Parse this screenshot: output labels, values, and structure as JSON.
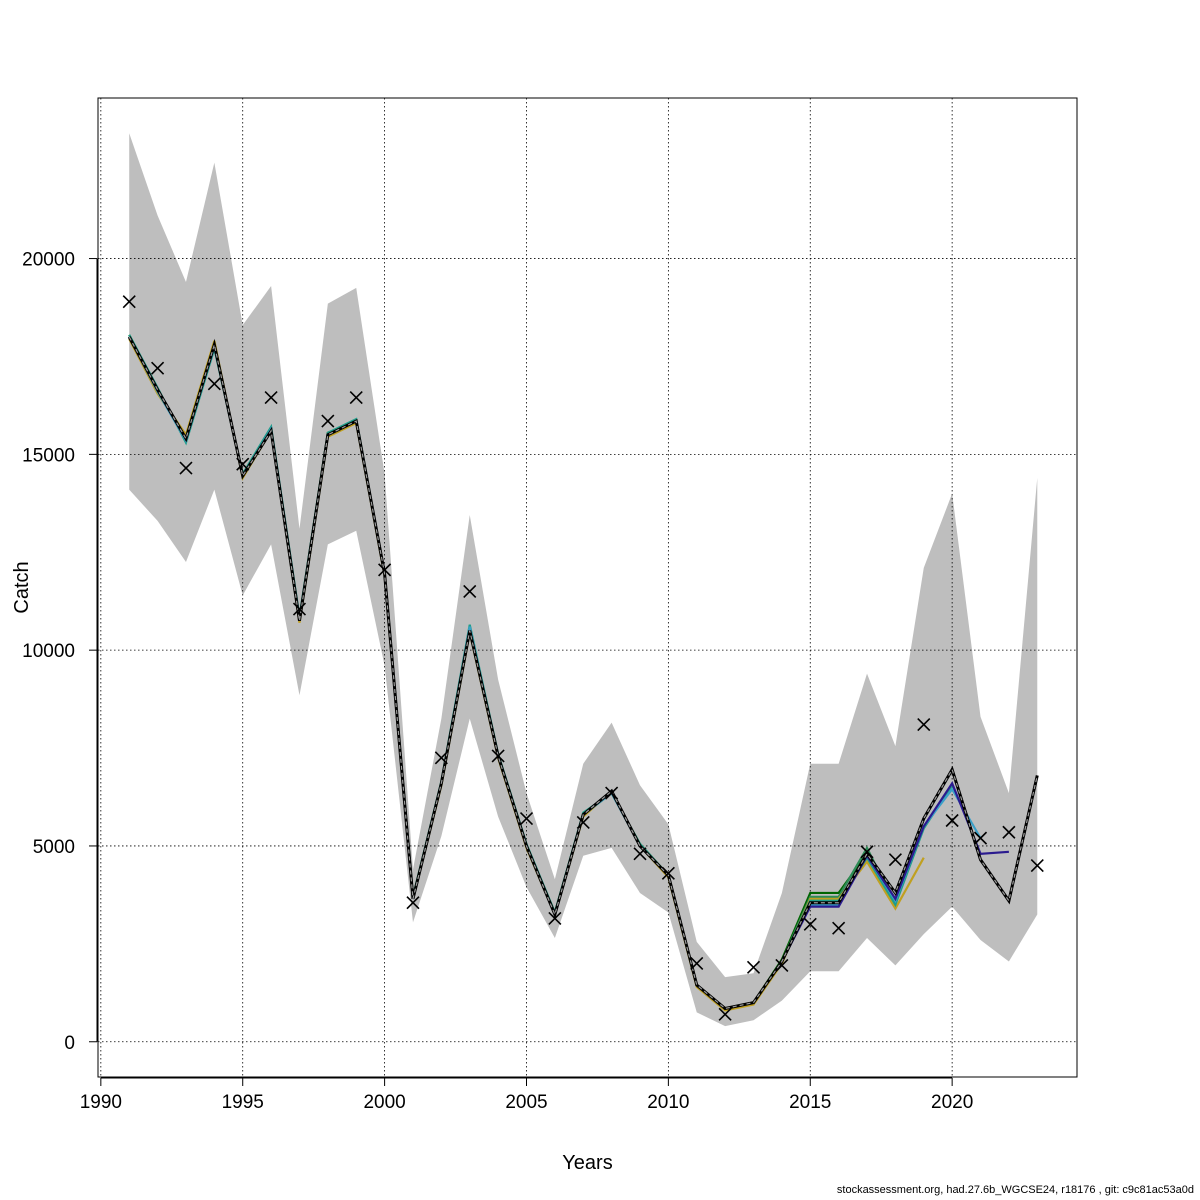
{
  "footer": "stockassessment.org, had.27.6b_WGCSE24, r18176 , git: c9c81ac53a0d",
  "chart_data": {
    "type": "line",
    "xlabel": "Years",
    "ylabel": "Catch",
    "xlim": [
      1989.9,
      2024.4
    ],
    "ylim": [
      -900,
      24100
    ],
    "x_ticks": [
      1990,
      1995,
      2000,
      2005,
      2010,
      2015,
      2020
    ],
    "y_ticks": [
      0,
      5000,
      10000,
      15000,
      20000
    ],
    "x_tick_labels": [
      "1990",
      "1995",
      "2000",
      "2005",
      "2010",
      "2015",
      "2020"
    ],
    "y_tick_labels": [
      "0",
      "5000",
      "10000",
      "15000",
      "20000"
    ],
    "grid": true,
    "colors": {
      "band": "#bebebe",
      "observed": "#000000",
      "fit": "#000000",
      "peel_1": "#2b1b8f",
      "peel_2": "#3aa0c8",
      "peel_3": "#1f9e89",
      "peel_4": "#c0a020",
      "peel_5": "#2e8b57",
      "peel_6": "#006400"
    },
    "confidence_band": {
      "x": [
        1991,
        1992,
        1993,
        1994,
        1995,
        1996,
        1997,
        1998,
        1999,
        2000,
        2001,
        2002,
        2003,
        2004,
        2005,
        2006,
        2007,
        2008,
        2009,
        2010,
        2011,
        2012,
        2013,
        2014,
        2015,
        2016,
        2017,
        2018,
        2019,
        2020,
        2021,
        2022,
        2023
      ],
      "lower": [
        14100,
        13300,
        12250,
        14100,
        11400,
        12700,
        8850,
        12700,
        13050,
        9600,
        3050,
        5250,
        8250,
        5750,
        3950,
        2650,
        4750,
        4950,
        3800,
        3300,
        750,
        400,
        550,
        1050,
        1800,
        1800,
        2650,
        1950,
        2750,
        3450,
        2600,
        2050,
        3250
      ],
      "upper": [
        23200,
        21100,
        19400,
        22450,
        18300,
        19300,
        13100,
        18850,
        19250,
        14500,
        4400,
        8250,
        13450,
        9250,
        6350,
        4150,
        7100,
        8150,
        6550,
        5550,
        2550,
        1650,
        1750,
        3800,
        7100,
        7100,
        9400,
        7550,
        12100,
        14000,
        8300,
        6350,
        14400
      ]
    },
    "observed": {
      "x": [
        1991,
        1992,
        1993,
        1994,
        1995,
        1996,
        1997,
        1998,
        1999,
        2000,
        2001,
        2002,
        2003,
        2004,
        2005,
        2006,
        2007,
        2008,
        2009,
        2010,
        2011,
        2012,
        2013,
        2014,
        2015,
        2016,
        2017,
        2018,
        2019,
        2020,
        2021,
        2022,
        2023
      ],
      "y": [
        18900,
        17200,
        14650,
        16800,
        14750,
        16450,
        11050,
        15850,
        16450,
        12050,
        3550,
        7250,
        11500,
        7300,
        5700,
        3150,
        5600,
        6350,
        4800,
        4300,
        2000,
        700,
        1900,
        1950,
        3000,
        2900,
        4850,
        4650,
        8100,
        5650,
        5200,
        5350,
        4500
      ]
    },
    "series": [
      {
        "role": "fit",
        "x": [
          1991,
          1992,
          1993,
          1994,
          1995,
          1996,
          1997,
          1998,
          1999,
          2000,
          2001,
          2002,
          2003,
          2004,
          2005,
          2006,
          2007,
          2008,
          2009,
          2010,
          2011,
          2012,
          2013,
          2014,
          2015,
          2016,
          2017,
          2018,
          2019,
          2020,
          2021,
          2022,
          2023
        ],
        "y": [
          18000,
          16650,
          15400,
          17800,
          14450,
          15600,
          10750,
          15500,
          15850,
          11950,
          3650,
          6600,
          10500,
          7300,
          5000,
          3250,
          5800,
          6400,
          5000,
          4250,
          1450,
          850,
          1000,
          2050,
          3550,
          3550,
          4800,
          3800,
          5700,
          6950,
          4650,
          3600,
          6800
        ]
      },
      {
        "role": "peel_1",
        "x": [
          1991,
          1992,
          1993,
          1994,
          1995,
          1996,
          1997,
          1998,
          1999,
          2000,
          2001,
          2002,
          2003,
          2004,
          2005,
          2006,
          2007,
          2008,
          2009,
          2010,
          2011,
          2012,
          2013,
          2014,
          2015,
          2016,
          2017,
          2018,
          2019,
          2020,
          2021,
          2022
        ],
        "y": [
          18000,
          16650,
          15400,
          17800,
          14450,
          15600,
          10750,
          15500,
          15850,
          11950,
          3650,
          6600,
          10500,
          7300,
          5000,
          3250,
          5800,
          6400,
          5000,
          4250,
          1450,
          850,
          1000,
          2050,
          3450,
          3450,
          4750,
          3650,
          5500,
          6600,
          4800,
          4850
        ]
      },
      {
        "role": "peel_2",
        "x": [
          1991,
          1992,
          1993,
          1994,
          1995,
          1996,
          1997,
          1998,
          1999,
          2000,
          2001,
          2002,
          2003,
          2004,
          2005,
          2006,
          2007,
          2008,
          2009,
          2010,
          2011,
          2012,
          2013,
          2014,
          2015,
          2016,
          2017,
          2018,
          2019,
          2020,
          2021
        ],
        "y": [
          18000,
          16600,
          15350,
          17750,
          14450,
          15650,
          10800,
          15500,
          15850,
          11950,
          3650,
          6600,
          10600,
          7300,
          5000,
          3250,
          5800,
          6350,
          5000,
          4250,
          1450,
          850,
          1000,
          2050,
          3500,
          3500,
          4750,
          3600,
          5500,
          6450,
          5200
        ]
      },
      {
        "role": "peel_3",
        "x": [
          1991,
          1992,
          1993,
          1994,
          1995,
          1996,
          1997,
          1998,
          1999,
          2000,
          2001,
          2002,
          2003,
          2004,
          2005,
          2006,
          2007,
          2008,
          2009,
          2010,
          2011,
          2012,
          2013,
          2014,
          2015,
          2016,
          2017,
          2018,
          2019,
          2020
        ],
        "y": [
          18050,
          16700,
          15300,
          17700,
          14500,
          15700,
          10850,
          15550,
          15900,
          11950,
          3700,
          6650,
          10650,
          7350,
          5050,
          3300,
          5850,
          6350,
          5050,
          4250,
          1450,
          850,
          1000,
          2050,
          3600,
          3600,
          4700,
          3500,
          5450,
          6550
        ]
      },
      {
        "role": "peel_4",
        "x": [
          1991,
          1992,
          1993,
          1994,
          1995,
          1996,
          1997,
          1998,
          1999,
          2000,
          2001,
          2002,
          2003,
          2004,
          2005,
          2006,
          2007,
          2008,
          2009,
          2010,
          2011,
          2012,
          2013,
          2014,
          2015,
          2016,
          2017,
          2018,
          2019
        ],
        "y": [
          17950,
          16550,
          15500,
          17900,
          14400,
          15600,
          10700,
          15450,
          15800,
          11900,
          3650,
          6550,
          10450,
          7250,
          4950,
          3250,
          5750,
          6400,
          5000,
          4200,
          1400,
          800,
          950,
          2000,
          3650,
          3650,
          4600,
          3400,
          4700
        ]
      },
      {
        "role": "peel_5",
        "x": [
          1991,
          1992,
          1993,
          1994,
          1995,
          1996,
          1997,
          1998,
          1999,
          2000,
          2001,
          2002,
          2003,
          2004,
          2005,
          2006,
          2007,
          2008,
          2009,
          2010,
          2011,
          2012,
          2013,
          2014,
          2015,
          2016,
          2017,
          2018
        ],
        "y": [
          18000,
          16600,
          15400,
          17800,
          14450,
          15600,
          10750,
          15500,
          15850,
          11950,
          3650,
          6600,
          10500,
          7300,
          5000,
          3250,
          5800,
          6400,
          5000,
          4250,
          1450,
          850,
          1000,
          2050,
          3700,
          3700,
          4950,
          3500
        ]
      },
      {
        "role": "peel_6",
        "x": [
          1991,
          1992,
          1993,
          1994,
          1995,
          1996,
          1997,
          1998,
          1999,
          2000,
          2001,
          2002,
          2003,
          2004,
          2005,
          2006,
          2007,
          2008,
          2009,
          2010,
          2011,
          2012,
          2013,
          2014,
          2015,
          2016,
          2017
        ],
        "y": [
          18050,
          16650,
          15400,
          17750,
          14450,
          15650,
          10800,
          15550,
          15850,
          11950,
          3700,
          6600,
          10500,
          7300,
          5000,
          3300,
          5800,
          6350,
          5050,
          4250,
          1450,
          850,
          1000,
          2100,
          3800,
          3800,
          4800
        ]
      }
    ]
  }
}
